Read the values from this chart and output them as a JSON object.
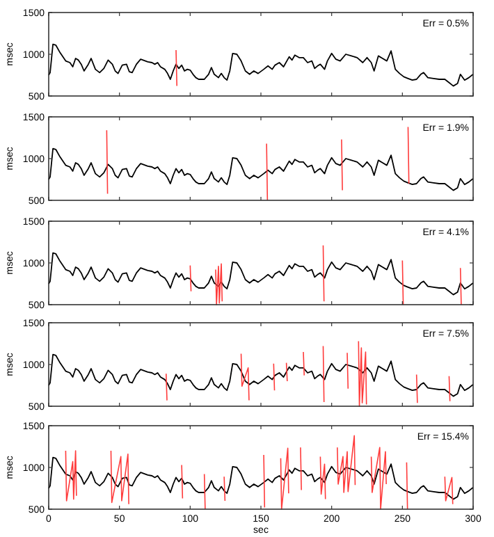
{
  "chart_data": [
    {
      "type": "line",
      "ylabel": "msec",
      "annotations": [
        "Err = 0.5%"
      ],
      "xlim": [
        0,
        300
      ],
      "ylim": [
        500,
        1500
      ],
      "xticks": [
        0,
        50,
        100,
        150,
        200,
        250,
        300
      ],
      "yticks": [
        500,
        1000,
        1500
      ],
      "tick_labels": "y",
      "grid": false,
      "series": [
        {
          "color": "#000000",
          "x": [
            0,
            1,
            3,
            5,
            8,
            12,
            15,
            17,
            19,
            21,
            23,
            25,
            28,
            30,
            33,
            36,
            39,
            42,
            45,
            47,
            49,
            52,
            55,
            57,
            59,
            62,
            65,
            70,
            73,
            75,
            77,
            79,
            82,
            84,
            86,
            88,
            90,
            92,
            94,
            96,
            98,
            100,
            102,
            104,
            106,
            110,
            113,
            115,
            117,
            120,
            122,
            124,
            126,
            128,
            130,
            133,
            136,
            139,
            142,
            145,
            148,
            152,
            155,
            158,
            160,
            163,
            166,
            170,
            172,
            174,
            177,
            180,
            183,
            186,
            188,
            190,
            192,
            195,
            197,
            200,
            203,
            206,
            210,
            214,
            218,
            222,
            225,
            228,
            230,
            233,
            236,
            239,
            242,
            245,
            248,
            251,
            254,
            257,
            260,
            263,
            265,
            268,
            272,
            276,
            280,
            283,
            286,
            289,
            291,
            294,
            297,
            300
          ],
          "values": [
            750,
            780,
            1120,
            1110,
            1020,
            920,
            900,
            850,
            950,
            930,
            880,
            800,
            880,
            950,
            820,
            780,
            830,
            930,
            880,
            800,
            770,
            870,
            880,
            790,
            780,
            880,
            940,
            910,
            900,
            880,
            900,
            850,
            820,
            770,
            700,
            800,
            880,
            830,
            870,
            800,
            820,
            810,
            760,
            720,
            700,
            700,
            760,
            840,
            760,
            720,
            770,
            720,
            690,
            800,
            1010,
            1000,
            920,
            800,
            760,
            800,
            770,
            820,
            860,
            820,
            870,
            900,
            850,
            970,
            930,
            990,
            960,
            960,
            900,
            920,
            830,
            860,
            880,
            820,
            920,
            1010,
            940,
            920,
            1000,
            980,
            960,
            900,
            960,
            900,
            800,
            980,
            950,
            920,
            1040,
            820,
            770,
            730,
            710,
            690,
            700,
            760,
            780,
            720,
            710,
            700,
            700,
            660,
            620,
            650,
            760,
            690,
            720,
            760
          ]
        },
        {
          "color": "#ff3b3b",
          "x": [
            90,
            90.6
          ],
          "values": [
            1050,
            620
          ]
        }
      ]
    },
    {
      "type": "line",
      "ylabel": "msec",
      "annotations": [
        "Err = 1.9%"
      ],
      "xlim": [
        0,
        300
      ],
      "ylim": [
        500,
        1500
      ],
      "xticks": [
        0,
        50,
        100,
        150,
        200,
        250,
        300
      ],
      "yticks": [
        500,
        1000,
        1500
      ],
      "tick_labels": "y",
      "grid": false,
      "series": [
        {
          "color": "#000000",
          "x": [
            0,
            1,
            3,
            5,
            8,
            12,
            15,
            17,
            19,
            21,
            23,
            25,
            28,
            30,
            33,
            36,
            39,
            42,
            45,
            47,
            49,
            52,
            55,
            57,
            59,
            62,
            65,
            70,
            73,
            75,
            77,
            79,
            82,
            84,
            86,
            88,
            90,
            92,
            94,
            96,
            98,
            100,
            102,
            104,
            106,
            110,
            113,
            115,
            117,
            120,
            122,
            124,
            126,
            128,
            130,
            133,
            136,
            139,
            142,
            145,
            148,
            152,
            155,
            158,
            160,
            163,
            166,
            170,
            172,
            174,
            177,
            180,
            183,
            186,
            188,
            190,
            192,
            195,
            197,
            200,
            203,
            206,
            210,
            214,
            218,
            222,
            225,
            228,
            230,
            233,
            236,
            239,
            242,
            245,
            248,
            251,
            254,
            257,
            260,
            263,
            265,
            268,
            272,
            276,
            280,
            283,
            286,
            289,
            291,
            294,
            297,
            300
          ],
          "values": [
            750,
            780,
            1120,
            1110,
            1020,
            920,
            900,
            850,
            950,
            930,
            880,
            800,
            880,
            950,
            820,
            780,
            830,
            930,
            880,
            800,
            770,
            870,
            880,
            790,
            780,
            880,
            940,
            910,
            900,
            880,
            900,
            850,
            820,
            770,
            700,
            800,
            880,
            830,
            870,
            800,
            820,
            810,
            760,
            720,
            700,
            700,
            760,
            840,
            760,
            720,
            770,
            720,
            690,
            800,
            1010,
            1000,
            920,
            800,
            760,
            800,
            770,
            820,
            860,
            820,
            870,
            900,
            850,
            970,
            930,
            990,
            960,
            960,
            900,
            920,
            830,
            860,
            880,
            820,
            920,
            1010,
            940,
            920,
            1000,
            980,
            960,
            900,
            960,
            900,
            800,
            980,
            950,
            920,
            1040,
            820,
            770,
            730,
            710,
            690,
            700,
            760,
            780,
            720,
            710,
            700,
            700,
            660,
            620,
            650,
            760,
            690,
            720,
            760
          ]
        },
        {
          "color": "#ff3b3b",
          "x": [
            41,
            41.6,
            48,
            154,
            154.6,
            180,
            207,
            207.6,
            230,
            254,
            254.6
          ],
          "values": [
            1340,
            580,
            null,
            1180,
            500,
            null,
            1230,
            620,
            null,
            1380,
            700
          ]
        }
      ]
    },
    {
      "type": "line",
      "ylabel": "msec",
      "annotations": [
        "Err = 4.1%"
      ],
      "xlim": [
        0,
        300
      ],
      "ylim": [
        500,
        1500
      ],
      "xticks": [
        0,
        50,
        100,
        150,
        200,
        250,
        300
      ],
      "yticks": [
        500,
        1000,
        1500
      ],
      "tick_labels": "y",
      "grid": false,
      "series": [
        {
          "color": "#000000",
          "x": [
            0,
            1,
            3,
            5,
            8,
            12,
            15,
            17,
            19,
            21,
            23,
            25,
            28,
            30,
            33,
            36,
            39,
            42,
            45,
            47,
            49,
            52,
            55,
            57,
            59,
            62,
            65,
            70,
            73,
            75,
            77,
            79,
            82,
            84,
            86,
            88,
            90,
            92,
            94,
            96,
            98,
            100,
            102,
            104,
            106,
            110,
            113,
            115,
            117,
            120,
            122,
            124,
            126,
            128,
            130,
            133,
            136,
            139,
            142,
            145,
            148,
            152,
            155,
            158,
            160,
            163,
            166,
            170,
            172,
            174,
            177,
            180,
            183,
            186,
            188,
            190,
            192,
            195,
            197,
            200,
            203,
            206,
            210,
            214,
            218,
            222,
            225,
            228,
            230,
            233,
            236,
            239,
            242,
            245,
            248,
            251,
            254,
            257,
            260,
            263,
            265,
            268,
            272,
            276,
            280,
            283,
            286,
            289,
            291,
            294,
            297,
            300
          ],
          "values": [
            750,
            780,
            1120,
            1110,
            1020,
            920,
            900,
            850,
            950,
            930,
            880,
            800,
            880,
            950,
            820,
            780,
            830,
            930,
            880,
            800,
            770,
            870,
            880,
            790,
            780,
            880,
            940,
            910,
            900,
            880,
            900,
            850,
            820,
            770,
            700,
            800,
            880,
            830,
            870,
            800,
            820,
            810,
            760,
            720,
            700,
            700,
            760,
            840,
            760,
            720,
            770,
            720,
            690,
            800,
            1010,
            1000,
            920,
            800,
            760,
            800,
            770,
            820,
            860,
            820,
            870,
            900,
            850,
            970,
            930,
            990,
            960,
            960,
            900,
            920,
            830,
            860,
            880,
            820,
            920,
            1010,
            940,
            920,
            1000,
            980,
            960,
            900,
            960,
            900,
            800,
            980,
            950,
            920,
            1040,
            820,
            770,
            730,
            710,
            690,
            700,
            760,
            780,
            720,
            710,
            700,
            700,
            660,
            620,
            650,
            760,
            690,
            720,
            760
          ]
        },
        {
          "color": "#ff3b3b",
          "x": [
            100,
            100.6,
            109,
            118,
            118.6,
            120,
            120.6,
            122,
            122.6,
            160,
            194,
            194.6,
            220,
            250,
            250.6,
            270,
            291,
            291.6
          ],
          "values": [
            970,
            660,
            null,
            920,
            500,
            960,
            520,
            990,
            540,
            null,
            1210,
            540,
            null,
            1030,
            500,
            null,
            940,
            500
          ]
        }
      ]
    },
    {
      "type": "line",
      "ylabel": "msec",
      "annotations": [
        "Err = 7.5%"
      ],
      "xlim": [
        0,
        300
      ],
      "ylim": [
        500,
        1500
      ],
      "xticks": [
        0,
        50,
        100,
        150,
        200,
        250,
        300
      ],
      "yticks": [
        500,
        1000,
        1500
      ],
      "tick_labels": "y",
      "grid": false,
      "series": [
        {
          "color": "#000000",
          "x": [
            0,
            1,
            3,
            5,
            8,
            12,
            15,
            17,
            19,
            21,
            23,
            25,
            28,
            30,
            33,
            36,
            39,
            42,
            45,
            47,
            49,
            52,
            55,
            57,
            59,
            62,
            65,
            70,
            73,
            75,
            77,
            79,
            82,
            84,
            86,
            88,
            90,
            92,
            94,
            96,
            98,
            100,
            102,
            104,
            106,
            110,
            113,
            115,
            117,
            120,
            122,
            124,
            126,
            128,
            130,
            133,
            136,
            139,
            142,
            145,
            148,
            152,
            155,
            158,
            160,
            163,
            166,
            170,
            172,
            174,
            177,
            180,
            183,
            186,
            188,
            190,
            192,
            195,
            197,
            200,
            203,
            206,
            210,
            214,
            218,
            222,
            225,
            228,
            230,
            233,
            236,
            239,
            242,
            245,
            248,
            251,
            254,
            257,
            260,
            263,
            265,
            268,
            272,
            276,
            280,
            283,
            286,
            289,
            291,
            294,
            297,
            300
          ],
          "values": [
            750,
            780,
            1120,
            1110,
            1020,
            920,
            900,
            850,
            950,
            930,
            880,
            800,
            880,
            950,
            820,
            780,
            830,
            930,
            880,
            800,
            770,
            870,
            880,
            790,
            780,
            880,
            940,
            910,
            900,
            880,
            900,
            850,
            820,
            770,
            700,
            800,
            880,
            830,
            870,
            800,
            820,
            810,
            760,
            720,
            700,
            700,
            760,
            840,
            760,
            720,
            770,
            720,
            690,
            800,
            1010,
            1000,
            920,
            800,
            760,
            800,
            770,
            820,
            860,
            820,
            870,
            900,
            850,
            970,
            930,
            990,
            960,
            960,
            900,
            920,
            830,
            860,
            880,
            820,
            920,
            1010,
            940,
            920,
            1000,
            980,
            960,
            900,
            960,
            900,
            800,
            980,
            950,
            920,
            1040,
            820,
            770,
            730,
            710,
            690,
            700,
            760,
            780,
            720,
            710,
            700,
            700,
            660,
            620,
            650,
            760,
            690,
            720,
            760
          ]
        },
        {
          "color": "#ff3b3b",
          "x": [
            83,
            83.6,
            110,
            136,
            136.6,
            141,
            141.6,
            150,
            159,
            159.6,
            164,
            168,
            168.6,
            174,
            180,
            180.6,
            187,
            194,
            194.6,
            202,
            211,
            211.6,
            215,
            219,
            219.6,
            221,
            221.6,
            224,
            224.6,
            240,
            260,
            260.6,
            270,
            283,
            283.6
          ],
          "values": [
            890,
            570,
            null,
            1130,
            740,
            960,
            570,
            null,
            1010,
            690,
            null,
            1020,
            800,
            null,
            1150,
            870,
            null,
            1220,
            550,
            null,
            1140,
            710,
            null,
            1280,
            500,
            1200,
            540,
            1150,
            520,
            null,
            880,
            540,
            null,
            860,
            560
          ]
        }
      ]
    },
    {
      "type": "line",
      "xlabel": "sec",
      "ylabel": "msec",
      "annotations": [
        "Err = 15.4%"
      ],
      "xlim": [
        0,
        300
      ],
      "ylim": [
        500,
        1500
      ],
      "xticks": [
        0,
        50,
        100,
        150,
        200,
        250,
        300
      ],
      "yticks": [
        500,
        1000,
        1500
      ],
      "grid": false,
      "series": [
        {
          "color": "#000000",
          "x": [
            0,
            1,
            3,
            5,
            8,
            12,
            15,
            17,
            19,
            21,
            23,
            25,
            28,
            30,
            33,
            36,
            39,
            42,
            45,
            47,
            49,
            52,
            55,
            57,
            59,
            62,
            65,
            70,
            73,
            75,
            77,
            79,
            82,
            84,
            86,
            88,
            90,
            92,
            94,
            96,
            98,
            100,
            102,
            104,
            106,
            110,
            113,
            115,
            117,
            120,
            122,
            124,
            126,
            128,
            130,
            133,
            136,
            139,
            142,
            145,
            148,
            152,
            155,
            158,
            160,
            163,
            166,
            170,
            172,
            174,
            177,
            180,
            183,
            186,
            188,
            190,
            192,
            195,
            197,
            200,
            203,
            206,
            210,
            214,
            218,
            222,
            225,
            228,
            230,
            233,
            236,
            239,
            242,
            245,
            248,
            251,
            254,
            257,
            260,
            263,
            265,
            268,
            272,
            276,
            280,
            283,
            286,
            289,
            291,
            294,
            297,
            300
          ],
          "values": [
            750,
            780,
            1120,
            1110,
            1020,
            920,
            900,
            850,
            950,
            930,
            880,
            800,
            880,
            950,
            820,
            780,
            830,
            930,
            880,
            800,
            770,
            870,
            880,
            790,
            780,
            880,
            940,
            910,
            900,
            880,
            900,
            850,
            820,
            770,
            700,
            800,
            880,
            830,
            870,
            800,
            820,
            810,
            760,
            720,
            700,
            700,
            760,
            840,
            760,
            720,
            770,
            720,
            690,
            800,
            1010,
            1000,
            920,
            800,
            760,
            800,
            770,
            820,
            860,
            820,
            870,
            900,
            850,
            970,
            930,
            990,
            960,
            960,
            900,
            920,
            830,
            860,
            880,
            820,
            920,
            1010,
            940,
            920,
            1000,
            980,
            960,
            900,
            960,
            900,
            800,
            980,
            950,
            920,
            1040,
            820,
            770,
            730,
            710,
            690,
            700,
            760,
            780,
            720,
            710,
            700,
            700,
            660,
            620,
            650,
            760,
            690,
            720,
            760
          ]
        },
        {
          "color": "#ff3b3b",
          "x": [
            12,
            12.6,
            17,
            17.6,
            19,
            19.6,
            30,
            44,
            44.6,
            51,
            51.6,
            56,
            56.6,
            80,
            94,
            94.6,
            100,
            110,
            110.6,
            117,
            124,
            124.6,
            140,
            152,
            152.6,
            158,
            164,
            164.6,
            169,
            169.6,
            174,
            178,
            178.6,
            185,
            192,
            192.6,
            195,
            195.6,
            200,
            204,
            204.6,
            208,
            208.6,
            211,
            211.6,
            216,
            216.6,
            222,
            228,
            228.6,
            234,
            234.6,
            238,
            238.6,
            245,
            253,
            253.6,
            270,
            280,
            280.6,
            285,
            285.6
          ],
          "values": [
            1200,
            600,
            1070,
            620,
            1200,
            660,
            null,
            1200,
            580,
            1130,
            600,
            1160,
            560,
            null,
            1030,
            630,
            null,
            920,
            500,
            null,
            890,
            600,
            null,
            1150,
            520,
            null,
            1110,
            500,
            1230,
            690,
            null,
            1240,
            730,
            null,
            1130,
            680,
            1040,
            620,
            null,
            1240,
            800,
            1130,
            700,
            1190,
            710,
            1380,
            790,
            null,
            1130,
            700,
            1240,
            500,
            1190,
            800,
            null,
            1060,
            500,
            null,
            890,
            600,
            880,
            560
          ]
        }
      ]
    }
  ]
}
